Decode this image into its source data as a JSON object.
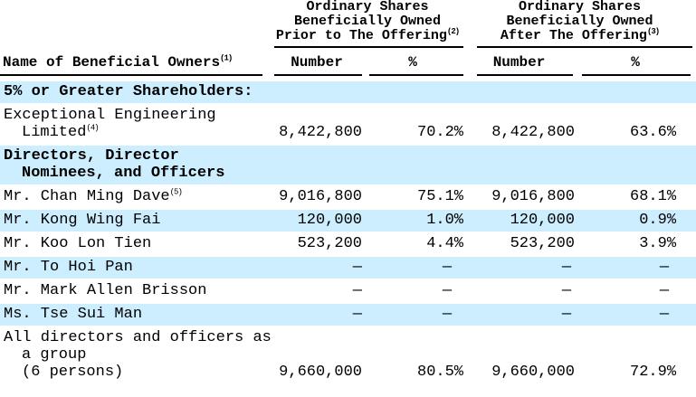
{
  "colors": {
    "band": "#cceeff",
    "text": "#000000",
    "rule": "#000000",
    "background": "#ffffff"
  },
  "table": {
    "group_headers": [
      {
        "lines": [
          "Ordinary Shares",
          "Beneficially Owned",
          "Prior to The Offering"
        ],
        "sup": "(2)"
      },
      {
        "lines": [
          "Ordinary Shares",
          "Beneficially Owned",
          "After The Offering"
        ],
        "sup": "(3)"
      }
    ],
    "columns": {
      "name": {
        "label": "Name of Beneficial Owners",
        "sup": "(1)"
      },
      "sub": [
        "Number",
        "%",
        "Number",
        "%"
      ]
    },
    "rows": [
      {
        "type": "section",
        "bold": true,
        "bg": "blue",
        "lines": [
          {
            "text": "5% or Greater Shareholders:"
          }
        ],
        "values": [
          "",
          "",
          "",
          ""
        ]
      },
      {
        "type": "data",
        "bold": false,
        "bg": "white",
        "lines": [
          {
            "text": "Exceptional Engineering"
          },
          {
            "text": "Limited",
            "sup": "(4)",
            "indent": true
          }
        ],
        "values": [
          "8,422,800",
          "70.2%",
          "8,422,800",
          "63.6%"
        ]
      },
      {
        "type": "section",
        "bold": true,
        "bg": "blue",
        "lines": [
          {
            "text": "Directors, Director"
          },
          {
            "text": "Nominees, and Officers",
            "indent": true
          }
        ],
        "values": [
          "",
          "",
          "",
          ""
        ]
      },
      {
        "type": "data",
        "bold": false,
        "bg": "white",
        "lines": [
          {
            "text": "Mr. Chan Ming Dave",
            "sup": "(5)"
          }
        ],
        "values": [
          "9,016,800",
          "75.1%",
          "9,016,800",
          "68.1%"
        ]
      },
      {
        "type": "data",
        "bold": false,
        "bg": "blue",
        "lines": [
          {
            "text": "Mr. Kong Wing Fai"
          }
        ],
        "values": [
          "120,000",
          "1.0%",
          "120,000",
          "0.9%"
        ]
      },
      {
        "type": "data",
        "bold": false,
        "bg": "white",
        "lines": [
          {
            "text": "Mr. Koo Lon Tien"
          }
        ],
        "values": [
          "523,200",
          "4.4%",
          "523,200",
          "3.9%"
        ]
      },
      {
        "type": "data",
        "bold": false,
        "bg": "blue",
        "lines": [
          {
            "text": "Mr. To Hoi Pan"
          }
        ],
        "values": [
          "—",
          "—",
          "—",
          "—"
        ]
      },
      {
        "type": "data",
        "bold": false,
        "bg": "white",
        "lines": [
          {
            "text": "Mr. Mark Allen Brisson"
          }
        ],
        "values": [
          "—",
          "—",
          "—",
          "—"
        ]
      },
      {
        "type": "data",
        "bold": false,
        "bg": "blue",
        "lines": [
          {
            "text": "Ms. Tse Sui Man"
          }
        ],
        "values": [
          "—",
          "—",
          "—",
          "—"
        ]
      },
      {
        "type": "data",
        "bold": false,
        "bg": "white",
        "lines": [
          {
            "text": "All directors and officers as"
          },
          {
            "text": "a group",
            "indent": true
          },
          {
            "text": "(6 persons)",
            "indent": true
          }
        ],
        "values": [
          "9,660,000",
          "80.5%",
          "9,660,000",
          "72.9%"
        ]
      }
    ]
  }
}
